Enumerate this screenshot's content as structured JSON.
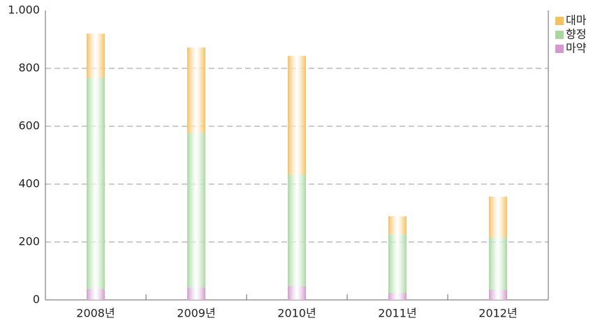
{
  "chart_data": {
    "type": "stacked_bar",
    "categories": [
      "2008년",
      "2009년",
      "2010년",
      "2011년",
      "2012년"
    ],
    "series": [
      {
        "name": "마약",
        "color": "#d49ad0",
        "values": [
          38,
          43,
          48,
          24,
          36
        ]
      },
      {
        "name": "향정",
        "color": "#a8d8a0",
        "values": [
          731,
          535,
          386,
          202,
          181
        ]
      },
      {
        "name": "대마",
        "color": "#f5c060",
        "values": [
          151,
          294,
          409,
          63,
          140
        ]
      }
    ],
    "ylim": [
      0,
      1000
    ],
    "yticks": [
      0,
      200,
      400,
      600,
      800,
      {
        "value": 1000,
        "label": "1.000"
      }
    ],
    "grid": true,
    "legend": "top-right"
  }
}
